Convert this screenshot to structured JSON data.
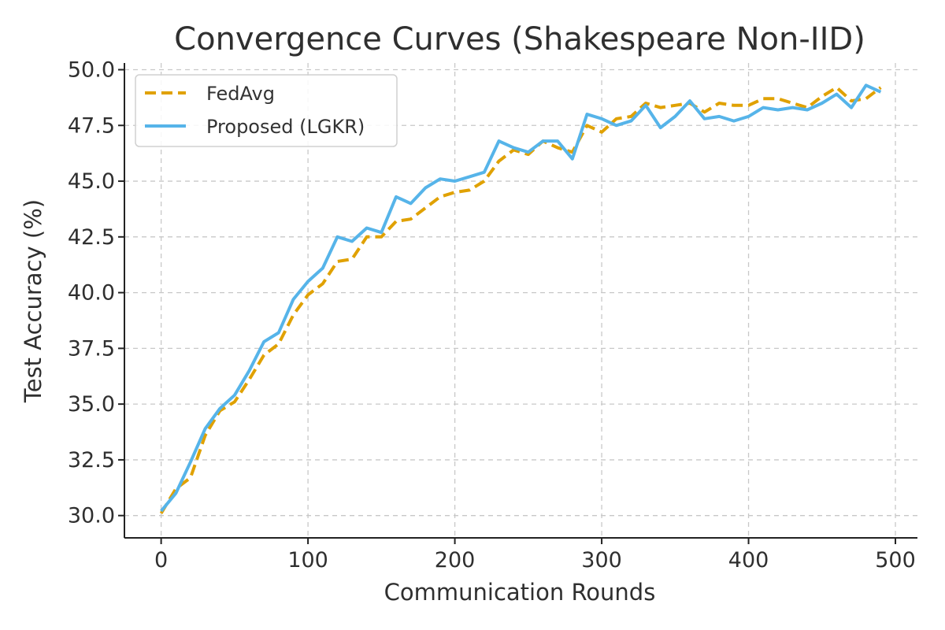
{
  "chart_data": {
    "type": "line",
    "title": "Convergence Curves (Shakespeare Non-IID)",
    "xlabel": "Communication Rounds",
    "ylabel": "Test Accuracy (%)",
    "xlim": [
      -25,
      515
    ],
    "ylim": [
      29.0,
      50.3
    ],
    "xticks": [
      0,
      100,
      200,
      300,
      400,
      500
    ],
    "xtick_labels": [
      "0",
      "100",
      "200",
      "300",
      "400",
      "500"
    ],
    "yticks": [
      30.0,
      32.5,
      35.0,
      37.5,
      40.0,
      42.5,
      45.0,
      47.5,
      50.0
    ],
    "ytick_labels": [
      "30.0",
      "32.5",
      "35.0",
      "37.5",
      "40.0",
      "42.5",
      "45.0",
      "47.5",
      "50.0"
    ],
    "grid": true,
    "legend_position": "top-left",
    "x": [
      0,
      10,
      20,
      30,
      40,
      50,
      60,
      70,
      80,
      90,
      100,
      110,
      120,
      130,
      140,
      150,
      160,
      170,
      180,
      190,
      200,
      210,
      220,
      230,
      240,
      250,
      260,
      270,
      280,
      290,
      300,
      310,
      320,
      330,
      340,
      350,
      360,
      370,
      380,
      390,
      400,
      410,
      420,
      430,
      440,
      450,
      460,
      470,
      480,
      490
    ],
    "series": [
      {
        "name": "FedAvg",
        "color": "#E0A100",
        "style": "dashed",
        "values": [
          30.1,
          31.2,
          31.7,
          33.6,
          34.7,
          35.1,
          36.1,
          37.2,
          37.7,
          39.0,
          39.9,
          40.4,
          41.4,
          41.5,
          42.5,
          42.5,
          43.2,
          43.3,
          43.8,
          44.3,
          44.5,
          44.6,
          45.0,
          45.9,
          46.4,
          46.2,
          46.8,
          46.5,
          46.3,
          47.5,
          47.2,
          47.8,
          47.9,
          48.5,
          48.3,
          48.4,
          48.5,
          48.1,
          48.5,
          48.4,
          48.4,
          48.7,
          48.7,
          48.5,
          48.3,
          48.8,
          49.2,
          48.6,
          48.7,
          49.2
        ]
      },
      {
        "name": "Proposed (LGKR)",
        "color": "#56B4E9",
        "style": "solid",
        "values": [
          30.2,
          31.0,
          32.4,
          33.9,
          34.8,
          35.4,
          36.5,
          37.8,
          38.2,
          39.7,
          40.5,
          41.1,
          42.5,
          42.3,
          42.9,
          42.7,
          44.3,
          44.0,
          44.7,
          45.1,
          45.0,
          45.2,
          45.4,
          46.8,
          46.5,
          46.3,
          46.8,
          46.8,
          46.0,
          48.0,
          47.8,
          47.5,
          47.7,
          48.4,
          47.4,
          47.9,
          48.6,
          47.8,
          47.9,
          47.7,
          47.9,
          48.3,
          48.2,
          48.3,
          48.2,
          48.5,
          48.9,
          48.3,
          49.3,
          49.0
        ]
      }
    ]
  }
}
